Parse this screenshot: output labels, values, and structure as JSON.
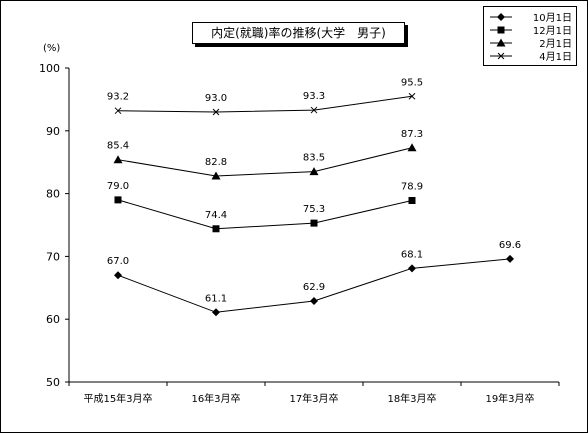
{
  "chart_data": {
    "type": "line",
    "title": "内定(就職)率の推移(大学　男子)",
    "unit_label": "(%)",
    "categories": [
      "平成15年3月卒",
      "16年3月卒",
      "17年3月卒",
      "18年3月卒",
      "19年3月卒"
    ],
    "ylim": [
      50,
      100
    ],
    "yticks": [
      50,
      60,
      70,
      80,
      90,
      100
    ],
    "grid": false,
    "legend_position": "top-right",
    "series": [
      {
        "name": "10月1日",
        "marker": "diamond",
        "values": [
          67.0,
          61.1,
          62.9,
          68.1,
          69.6
        ],
        "labels": [
          "67.0",
          "61.1",
          "62.9",
          "68.1",
          "69.6"
        ]
      },
      {
        "name": "12月1日",
        "marker": "square",
        "values": [
          79.0,
          74.4,
          75.3,
          78.9,
          null
        ],
        "labels": [
          "79.0",
          "74.4",
          "75.3",
          "78.9",
          null
        ]
      },
      {
        "name": "2月1日",
        "marker": "triangle",
        "values": [
          85.4,
          82.8,
          83.5,
          87.3,
          null
        ],
        "labels": [
          "85.4",
          "82.8",
          "83.5",
          "87.3",
          null
        ]
      },
      {
        "name": "4月1日",
        "marker": "x",
        "values": [
          93.2,
          93.0,
          93.3,
          95.5,
          null
        ],
        "labels": [
          "93.2",
          "93.0",
          "93.3",
          "95.5",
          null
        ]
      }
    ]
  }
}
